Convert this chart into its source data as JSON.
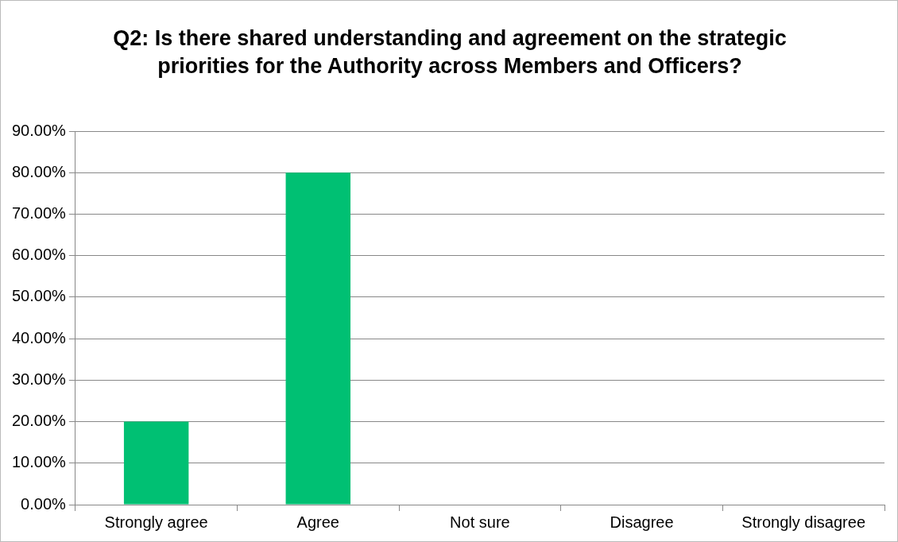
{
  "chart_data": {
    "type": "bar",
    "title": "Q2: Is there shared understanding and agreement on the strategic priorities for the Authority across Members and Officers?",
    "categories": [
      "Strongly agree",
      "Agree",
      "Not sure",
      "Disagree",
      "Strongly disagree"
    ],
    "values": [
      20,
      80,
      0,
      0,
      0
    ],
    "color": "#00c073",
    "ylim": [
      0,
      90
    ],
    "yticks": [
      {
        "value": 0,
        "label": "0.00%"
      },
      {
        "value": 10,
        "label": "10.00%"
      },
      {
        "value": 20,
        "label": "20.00%"
      },
      {
        "value": 30,
        "label": "30.00%"
      },
      {
        "value": 40,
        "label": "40.00%"
      },
      {
        "value": 50,
        "label": "50.00%"
      },
      {
        "value": 60,
        "label": "60.00%"
      },
      {
        "value": 70,
        "label": "70.00%"
      },
      {
        "value": 80,
        "label": "80.00%"
      },
      {
        "value": 90,
        "label": "90.00%"
      }
    ],
    "grid": "y",
    "legend": false
  }
}
